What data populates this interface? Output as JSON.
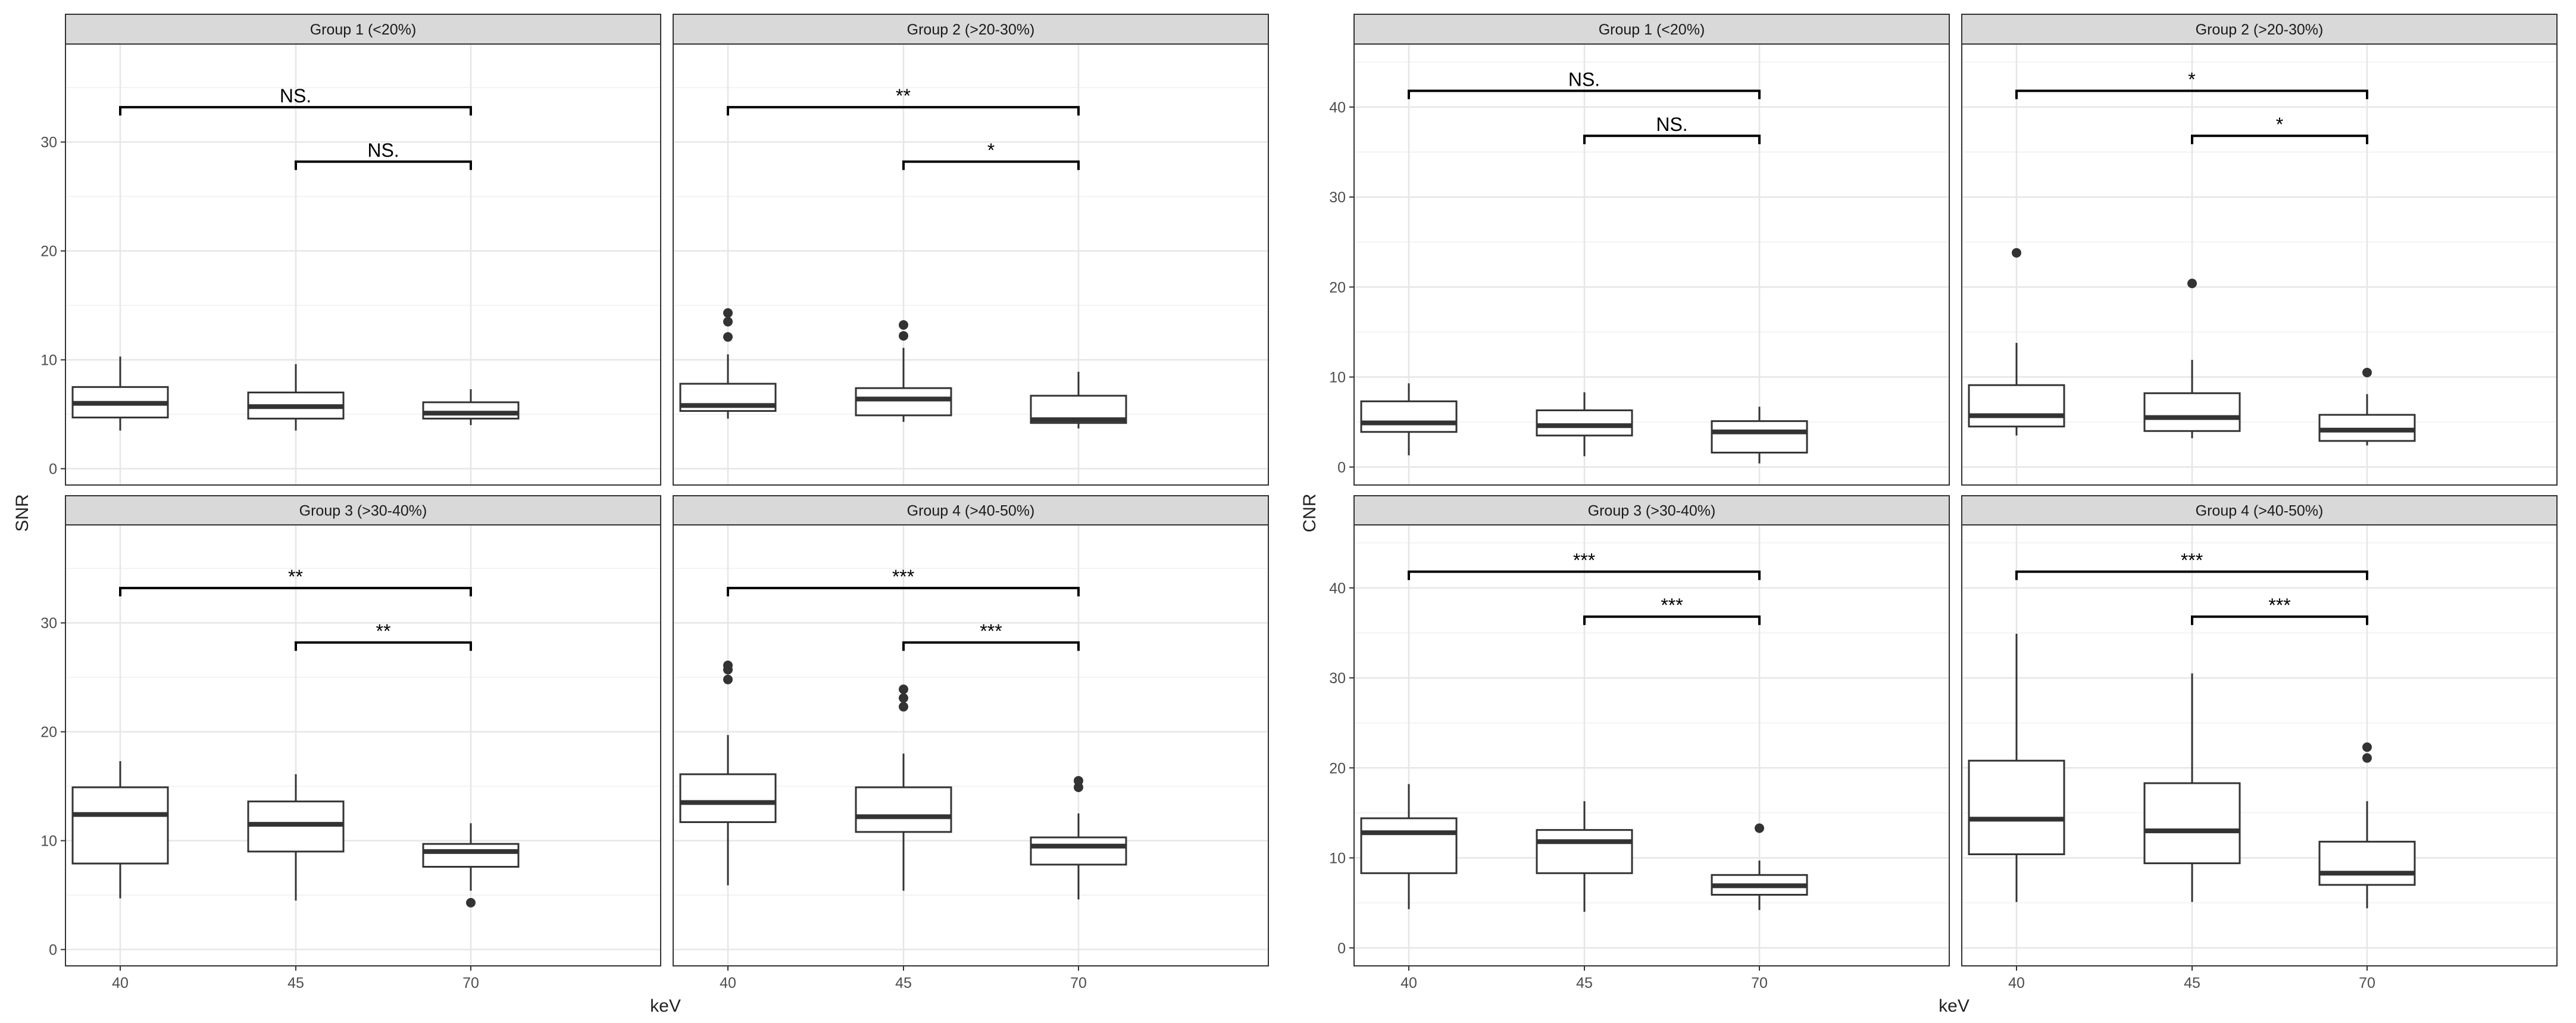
{
  "axes": {
    "x_label": "keV",
    "left_y_label": "SNR",
    "right_y_label": "CNR"
  },
  "chart_data": [
    {
      "type": "boxplot",
      "ylabel": "SNR",
      "xlabel": "keV",
      "categories": [
        "40",
        "45",
        "70"
      ],
      "ylim": [
        -1.5,
        39
      ],
      "yticks": [
        0,
        10,
        20,
        30
      ],
      "grid": true,
      "panels": [
        {
          "title": "Group 1 (<20%)",
          "boxes": [
            {
              "category": "40",
              "whisker_low": 3.5,
              "q1": 4.7,
              "median": 6.0,
              "q3": 7.5,
              "whisker_high": 10.3,
              "outliers": []
            },
            {
              "category": "45",
              "whisker_low": 3.5,
              "q1": 4.6,
              "median": 5.7,
              "q3": 7.0,
              "whisker_high": 9.6,
              "outliers": []
            },
            {
              "category": "70",
              "whisker_low": 4.0,
              "q1": 4.6,
              "median": 5.1,
              "q3": 6.1,
              "whisker_high": 7.3,
              "outliers": []
            }
          ],
          "comparisons": [
            {
              "from": "40",
              "to": "70",
              "label": "NS.",
              "y": 33.2
            },
            {
              "from": "45",
              "to": "70",
              "label": "NS.",
              "y": 28.2
            }
          ]
        },
        {
          "title": "Group 2 (>20-30%)",
          "boxes": [
            {
              "category": "40",
              "whisker_low": 4.6,
              "q1": 5.3,
              "median": 5.8,
              "q3": 7.8,
              "whisker_high": 10.5,
              "outliers": [
                12.1,
                13.5,
                14.3
              ]
            },
            {
              "category": "45",
              "whisker_low": 4.3,
              "q1": 4.9,
              "median": 6.4,
              "q3": 7.4,
              "whisker_high": 11.1,
              "outliers": [
                12.2,
                13.2
              ]
            },
            {
              "category": "70",
              "whisker_low": 3.7,
              "q1": 4.2,
              "median": 4.5,
              "q3": 6.7,
              "whisker_high": 8.9,
              "outliers": []
            }
          ],
          "comparisons": [
            {
              "from": "40",
              "to": "70",
              "label": "**",
              "y": 33.2
            },
            {
              "from": "45",
              "to": "70",
              "label": "*",
              "y": 28.2
            }
          ]
        },
        {
          "title": "Group 3 (>30-40%)",
          "boxes": [
            {
              "category": "40",
              "whisker_low": 4.7,
              "q1": 7.9,
              "median": 12.4,
              "q3": 14.9,
              "whisker_high": 17.3,
              "outliers": []
            },
            {
              "category": "45",
              "whisker_low": 4.5,
              "q1": 9.0,
              "median": 11.5,
              "q3": 13.6,
              "whisker_high": 16.1,
              "outliers": []
            },
            {
              "category": "70",
              "whisker_low": 5.4,
              "q1": 7.6,
              "median": 9.0,
              "q3": 9.7,
              "whisker_high": 11.6,
              "outliers": [
                4.3
              ]
            }
          ],
          "comparisons": [
            {
              "from": "40",
              "to": "70",
              "label": "**",
              "y": 33.2
            },
            {
              "from": "45",
              "to": "70",
              "label": "**",
              "y": 28.2
            }
          ]
        },
        {
          "title": "Group 4 (>40-50%)",
          "boxes": [
            {
              "category": "40",
              "whisker_low": 5.9,
              "q1": 11.7,
              "median": 13.5,
              "q3": 16.1,
              "whisker_high": 19.7,
              "outliers": [
                24.8,
                25.7,
                26.1
              ]
            },
            {
              "category": "45",
              "whisker_low": 5.4,
              "q1": 10.8,
              "median": 12.2,
              "q3": 14.9,
              "whisker_high": 18.0,
              "outliers": [
                22.3,
                23.1,
                23.9
              ]
            },
            {
              "category": "70",
              "whisker_low": 4.6,
              "q1": 7.8,
              "median": 9.5,
              "q3": 10.3,
              "whisker_high": 12.5,
              "outliers": [
                14.9,
                15.5
              ]
            }
          ],
          "comparisons": [
            {
              "from": "40",
              "to": "70",
              "label": "***",
              "y": 33.2
            },
            {
              "from": "45",
              "to": "70",
              "label": "***",
              "y": 28.2
            }
          ]
        }
      ]
    },
    {
      "type": "boxplot",
      "ylabel": "CNR",
      "xlabel": "keV",
      "categories": [
        "40",
        "45",
        "70"
      ],
      "ylim": [
        -2,
        47
      ],
      "yticks": [
        0,
        10,
        20,
        30,
        40
      ],
      "grid": true,
      "panels": [
        {
          "title": "Group 1 (<20%)",
          "boxes": [
            {
              "category": "40",
              "whisker_low": 1.3,
              "q1": 3.9,
              "median": 4.9,
              "q3": 7.3,
              "whisker_high": 9.3,
              "outliers": []
            },
            {
              "category": "45",
              "whisker_low": 1.2,
              "q1": 3.5,
              "median": 4.6,
              "q3": 6.3,
              "whisker_high": 8.3,
              "outliers": []
            },
            {
              "category": "70",
              "whisker_low": 0.4,
              "q1": 1.6,
              "median": 3.9,
              "q3": 5.1,
              "whisker_high": 6.7,
              "outliers": []
            }
          ],
          "comparisons": [
            {
              "from": "40",
              "to": "70",
              "label": "NS.",
              "y": 41.8
            },
            {
              "from": "45",
              "to": "70",
              "label": "NS.",
              "y": 36.8
            }
          ]
        },
        {
          "title": "Group 2 (>20-30%)",
          "boxes": [
            {
              "category": "40",
              "whisker_low": 3.5,
              "q1": 4.5,
              "median": 5.7,
              "q3": 9.1,
              "whisker_high": 13.8,
              "outliers": [
                23.8
              ]
            },
            {
              "category": "45",
              "whisker_low": 3.2,
              "q1": 4.0,
              "median": 5.5,
              "q3": 8.2,
              "whisker_high": 11.9,
              "outliers": [
                20.4
              ]
            },
            {
              "category": "70",
              "whisker_low": 2.4,
              "q1": 2.9,
              "median": 4.1,
              "q3": 5.8,
              "whisker_high": 8.1,
              "outliers": [
                10.5
              ]
            }
          ],
          "comparisons": [
            {
              "from": "40",
              "to": "70",
              "label": "*",
              "y": 41.8
            },
            {
              "from": "45",
              "to": "70",
              "label": "*",
              "y": 36.8
            }
          ]
        },
        {
          "title": "Group 3 (>30-40%)",
          "boxes": [
            {
              "category": "40",
              "whisker_low": 4.3,
              "q1": 8.3,
              "median": 12.8,
              "q3": 14.4,
              "whisker_high": 18.2,
              "outliers": []
            },
            {
              "category": "45",
              "whisker_low": 4.0,
              "q1": 8.3,
              "median": 11.8,
              "q3": 13.1,
              "whisker_high": 16.3,
              "outliers": []
            },
            {
              "category": "70",
              "whisker_low": 4.2,
              "q1": 5.9,
              "median": 6.9,
              "q3": 8.1,
              "whisker_high": 9.7,
              "outliers": [
                13.3
              ]
            }
          ],
          "comparisons": [
            {
              "from": "40",
              "to": "70",
              "label": "***",
              "y": 41.8
            },
            {
              "from": "45",
              "to": "70",
              "label": "***",
              "y": 36.8
            }
          ]
        },
        {
          "title": "Group 4 (>40-50%)",
          "boxes": [
            {
              "category": "40",
              "whisker_low": 5.1,
              "q1": 10.4,
              "median": 14.3,
              "q3": 20.8,
              "whisker_high": 34.9,
              "outliers": []
            },
            {
              "category": "45",
              "whisker_low": 5.1,
              "q1": 9.4,
              "median": 13.0,
              "q3": 18.3,
              "whisker_high": 30.5,
              "outliers": []
            },
            {
              "category": "70",
              "whisker_low": 4.4,
              "q1": 7.0,
              "median": 8.3,
              "q3": 11.8,
              "whisker_high": 16.3,
              "outliers": [
                21.1,
                22.3
              ]
            }
          ],
          "comparisons": [
            {
              "from": "40",
              "to": "70",
              "label": "***",
              "y": 41.8
            },
            {
              "from": "45",
              "to": "70",
              "label": "***",
              "y": 36.8
            }
          ]
        }
      ]
    }
  ]
}
